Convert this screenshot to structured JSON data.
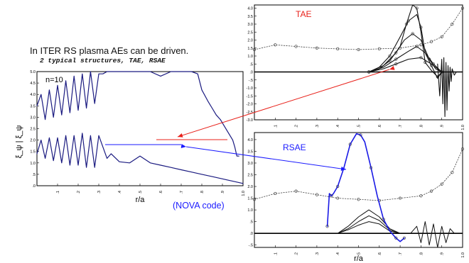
{
  "header": {
    "title": "In ITER RS plasma AEs can be driven.",
    "subtitle": "2 typical structures, TAE, RSAE"
  },
  "note": {
    "code_label": "(NOVA code)"
  },
  "colors": {
    "frame": "#000000",
    "curve_left": "#1a1a80",
    "arrow_tae": "#e8211a",
    "arrow_rsae": "#1a1aff",
    "tae_label": "#e8211a",
    "rsae_label": "#1a1aff",
    "rsae_mode": "#1a1ae6"
  },
  "chart_data": [
    {
      "type": "line",
      "id": "left",
      "annotation": "n=10",
      "ylabel": "ξ_ψ | ξ_ψ",
      "xlabel": "r/a",
      "xlim": [
        0,
        1.0
      ],
      "ylim": [
        0,
        5.0
      ],
      "xticks": [
        ".1",
        ".2",
        ".3",
        ".4",
        ".5",
        ".6",
        ".7",
        ".8",
        ".9",
        "1.0"
      ],
      "yticks": [
        ".0",
        ".5",
        "1.0",
        "1.5",
        "2.0",
        "2.5",
        "3.0",
        "3.5",
        "4.0",
        "4.5",
        "5.0"
      ],
      "series": [
        {
          "x": [
            0.0,
            0.02,
            0.04,
            0.06,
            0.08,
            0.1,
            0.12,
            0.14,
            0.16,
            0.18,
            0.2,
            0.22,
            0.24,
            0.26,
            0.28,
            0.3,
            0.32,
            0.34,
            0.36,
            0.4,
            0.45,
            0.5,
            0.55,
            0.6,
            0.65,
            0.7,
            0.75,
            0.78,
            0.8,
            0.83,
            0.85,
            0.87,
            0.89,
            0.91,
            0.93,
            0.95,
            0.96,
            0.97,
            0.98
          ],
          "y": [
            3.5,
            4.0,
            2.9,
            4.2,
            3.0,
            4.4,
            3.1,
            4.6,
            3.2,
            4.8,
            3.3,
            4.9,
            3.4,
            5.0,
            3.6,
            4.9,
            4.9,
            5.0,
            5.0,
            5.0,
            5.0,
            5.0,
            5.0,
            4.8,
            5.0,
            5.0,
            5.0,
            4.9,
            4.2,
            3.7,
            3.4,
            3.1,
            2.9,
            2.6,
            2.3,
            2.0,
            1.7,
            1.3,
            1.3
          ]
        },
        {
          "x": [
            0.0,
            0.02,
            0.04,
            0.06,
            0.08,
            0.1,
            0.12,
            0.14,
            0.16,
            0.18,
            0.2,
            0.22,
            0.24,
            0.26,
            0.28,
            0.3,
            0.32,
            0.34,
            0.36,
            0.4,
            0.45,
            0.5,
            0.55,
            0.6,
            0.65,
            0.7,
            0.75,
            0.8,
            0.85,
            0.9,
            0.95,
            1.0
          ],
          "y": [
            1.4,
            2.0,
            1.2,
            2.1,
            1.1,
            2.1,
            1.0,
            2.2,
            0.9,
            2.2,
            0.9,
            2.3,
            0.8,
            2.2,
            0.8,
            2.2,
            1.7,
            1.2,
            1.4,
            1.05,
            1.0,
            1.3,
            1.0,
            0.9,
            0.8,
            0.7,
            0.6,
            0.5,
            0.4,
            0.3,
            0.2,
            0.1
          ]
        }
      ]
    },
    {
      "type": "line",
      "id": "tae",
      "label": "TAE",
      "xlim": [
        0,
        1.0
      ],
      "ylim": [
        -3.0,
        4.2
      ],
      "xticks": [
        ".1",
        ".2",
        ".3",
        ".4",
        ".5",
        ".6",
        ".7",
        ".8",
        ".9",
        "1.0"
      ],
      "yticks": [
        "4.0",
        "3.5",
        "3.0",
        "2.5",
        "2.0",
        "1.5",
        "1.0",
        ".5",
        ".0",
        "-.5",
        "-1.0",
        "-1.5",
        "-2.0",
        "-2.5",
        "-3.0"
      ],
      "dotted": {
        "x": [
          0.0,
          0.1,
          0.2,
          0.3,
          0.4,
          0.5,
          0.6,
          0.7,
          0.8,
          0.85,
          0.9,
          0.95,
          1.0
        ],
        "y": [
          1.4,
          1.7,
          1.6,
          1.5,
          1.45,
          1.4,
          1.45,
          1.5,
          1.7,
          1.9,
          2.2,
          3.0,
          4.0
        ]
      },
      "modes": [
        {
          "x": [
            0.55,
            0.6,
            0.65,
            0.7,
            0.73,
            0.76,
            0.78,
            0.8,
            0.82,
            0.85,
            0.88,
            0.9
          ],
          "y": [
            0,
            0.2,
            0.7,
            1.6,
            3.0,
            4.2,
            4.0,
            2.5,
            0.6,
            0.1,
            -0.3,
            0
          ]
        },
        {
          "x": [
            0.55,
            0.6,
            0.65,
            0.7,
            0.74,
            0.78,
            0.8,
            0.82,
            0.85,
            0.88,
            0.9
          ],
          "y": [
            0,
            0.3,
            1.0,
            2.2,
            3.2,
            3.6,
            2.8,
            1.2,
            0.4,
            -0.4,
            0
          ]
        },
        {
          "x": [
            0.55,
            0.62,
            0.68,
            0.72,
            0.76,
            0.8,
            0.84,
            0.87,
            0.9
          ],
          "y": [
            0,
            0.4,
            1.2,
            2.0,
            2.4,
            2.0,
            0.8,
            0.2,
            0
          ]
        },
        {
          "x": [
            0.55,
            0.62,
            0.68,
            0.74,
            0.78,
            0.82,
            0.86,
            0.9
          ],
          "y": [
            0,
            0.3,
            0.8,
            1.3,
            1.6,
            1.2,
            0.5,
            0
          ]
        },
        {
          "x": [
            0.55,
            0.62,
            0.68,
            0.74,
            0.8,
            0.85,
            0.9
          ],
          "y": [
            0,
            0.2,
            0.5,
            0.8,
            0.9,
            0.5,
            0
          ]
        }
      ],
      "noise": {
        "x": [
          0.88,
          0.89,
          0.9,
          0.905,
          0.91,
          0.915,
          0.92,
          0.925,
          0.93,
          0.935,
          0.94,
          0.945,
          0.95,
          0.96,
          0.97
        ],
        "y": [
          0.5,
          -1.5,
          0.8,
          -2.0,
          0.9,
          -2.8,
          0.6,
          -2.4,
          0.4,
          -1.2,
          0.3,
          -0.6,
          0.2,
          -0.2,
          0
        ]
      }
    },
    {
      "type": "line",
      "id": "rsae",
      "label": "RSAE",
      "xlim": [
        0,
        1.0
      ],
      "ylim": [
        -0.6,
        4.3
      ],
      "xlabel": "r/a",
      "xticks": [
        ".1",
        ".2",
        ".3",
        ".4",
        ".5",
        ".6",
        ".7",
        ".8",
        ".9",
        "1.0"
      ],
      "yticks": [
        "4.0",
        "3.5",
        "3.0",
        "2.5",
        "2.0",
        "1.5",
        "1.0",
        ".5",
        ".0",
        "-.5"
      ],
      "dotted": {
        "x": [
          0.0,
          0.1,
          0.2,
          0.3,
          0.4,
          0.5,
          0.6,
          0.7,
          0.8,
          0.85,
          0.9,
          0.95,
          1.0
        ],
        "y": [
          1.45,
          1.7,
          1.8,
          1.65,
          1.5,
          1.45,
          1.4,
          1.5,
          1.6,
          1.8,
          2.1,
          2.6,
          3.6
        ]
      },
      "main_mode": {
        "x": [
          0.35,
          0.36,
          0.37,
          0.38,
          0.4,
          0.43,
          0.46,
          0.49,
          0.51,
          0.53,
          0.56,
          0.59,
          0.62,
          0.65,
          0.68,
          0.7,
          0.72
        ],
        "y": [
          0.3,
          1.7,
          1.6,
          1.7,
          2.0,
          2.8,
          3.8,
          4.25,
          4.2,
          3.9,
          2.8,
          1.6,
          0.6,
          0.1,
          -0.2,
          -0.35,
          -0.2
        ]
      },
      "small_modes": [
        {
          "x": [
            0.4,
            0.45,
            0.5,
            0.55,
            0.6,
            0.65,
            0.7
          ],
          "y": [
            0,
            0.3,
            0.7,
            1.0,
            0.7,
            0.2,
            0
          ]
        },
        {
          "x": [
            0.4,
            0.45,
            0.5,
            0.55,
            0.6,
            0.65,
            0.7
          ],
          "y": [
            0,
            0.2,
            0.5,
            0.75,
            0.55,
            0.15,
            0
          ]
        },
        {
          "x": [
            0.4,
            0.45,
            0.5,
            0.55,
            0.6,
            0.65,
            0.7
          ],
          "y": [
            0,
            0.15,
            0.35,
            0.5,
            0.4,
            0.1,
            0
          ]
        }
      ],
      "noise": {
        "x": [
          0.75,
          0.78,
          0.8,
          0.82,
          0.84,
          0.86,
          0.88,
          0.9,
          0.92,
          0.94,
          0.96
        ],
        "y": [
          0,
          0.3,
          -0.4,
          0.5,
          -0.5,
          0.4,
          -0.6,
          0.3,
          -0.4,
          0.2,
          0
        ]
      }
    }
  ]
}
